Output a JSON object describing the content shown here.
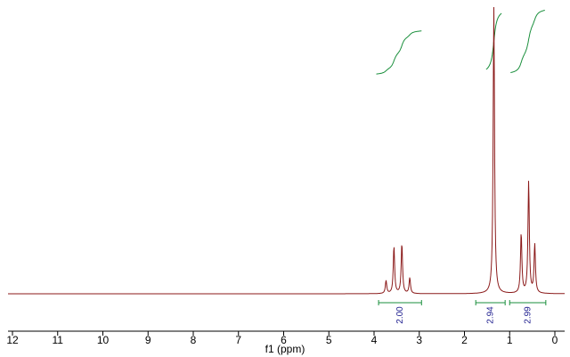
{
  "chart_data": {
    "type": "line",
    "xlabel": "f1 (ppm)",
    "ylabel": "",
    "xlim": [
      12.25,
      -0.1
    ],
    "x_reversed": true,
    "x_ticks": [
      12,
      11,
      10,
      9,
      8,
      7,
      6,
      5,
      4,
      3,
      2,
      1,
      0
    ],
    "grid": false,
    "colors": {
      "spectrum": "#8b1a1a",
      "integral": "#1a8f3c",
      "integral_label": "#1f1f8f",
      "axis": "#000000"
    },
    "peaks": [
      {
        "center": 3.38,
        "multiplicity": "quartet",
        "lines": [
          3.735,
          3.56,
          3.385,
          3.21
        ],
        "heights": [
          0.045,
          0.165,
          0.175,
          0.055
        ]
      },
      {
        "center": 1.35,
        "multiplicity": "singlet",
        "lines": [
          1.35
        ],
        "heights": [
          1.0
        ]
      },
      {
        "center": 0.58,
        "multiplicity": "triplet",
        "lines": [
          0.745,
          0.58,
          0.445
        ],
        "heights": [
          0.21,
          0.39,
          0.17
        ]
      }
    ],
    "integrals": [
      {
        "label": "2.00",
        "range": [
          3.9,
          2.95
        ],
        "value": 2.0
      },
      {
        "label": "2.94",
        "range": [
          1.75,
          1.1
        ],
        "value": 2.94
      },
      {
        "label": "2.99",
        "range": [
          1.0,
          0.2
        ],
        "value": 2.99
      }
    ]
  }
}
